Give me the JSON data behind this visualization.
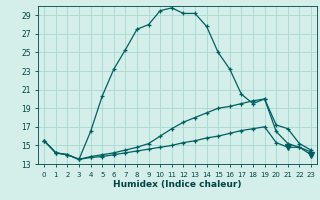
{
  "xlabel": "Humidex (Indice chaleur)",
  "x": [
    0,
    1,
    2,
    3,
    4,
    5,
    6,
    7,
    8,
    9,
    10,
    11,
    12,
    13,
    14,
    15,
    16,
    17,
    18,
    19,
    20,
    21,
    22,
    23
  ],
  "y_max": [
    15.5,
    14.2,
    14.0,
    13.5,
    16.5,
    20.3,
    23.2,
    25.3,
    27.5,
    28.0,
    29.5,
    29.8,
    29.2,
    29.2,
    27.8,
    25.0,
    23.2,
    20.5,
    19.5,
    20.0,
    17.2,
    16.8,
    15.2,
    14.5
  ],
  "y_avg": [
    15.5,
    14.2,
    14.0,
    13.5,
    13.8,
    14.0,
    14.2,
    14.5,
    14.8,
    15.2,
    16.0,
    16.8,
    17.5,
    18.0,
    18.5,
    19.0,
    19.2,
    19.5,
    19.8,
    20.0,
    16.5,
    15.2,
    14.8,
    14.3
  ],
  "y_min": [
    15.5,
    14.2,
    14.0,
    13.5,
    13.7,
    13.8,
    14.0,
    14.2,
    14.4,
    14.6,
    14.8,
    15.0,
    15.3,
    15.5,
    15.8,
    16.0,
    16.3,
    16.6,
    16.8,
    17.0,
    15.3,
    14.8,
    14.8,
    14.0
  ],
  "bg_color": "#d4eeea",
  "line_color": "#006060",
  "grid_color": "#aad8d0",
  "tick_color": "#004444",
  "text_color": "#004444",
  "ylim": [
    13,
    30
  ],
  "xlim": [
    -0.5,
    23.5
  ],
  "yticks": [
    13,
    15,
    17,
    19,
    21,
    23,
    25,
    27,
    29
  ],
  "xticks": [
    0,
    1,
    2,
    3,
    4,
    5,
    6,
    7,
    8,
    9,
    10,
    11,
    12,
    13,
    14,
    15,
    16,
    17,
    18,
    19,
    20,
    21,
    22,
    23
  ]
}
